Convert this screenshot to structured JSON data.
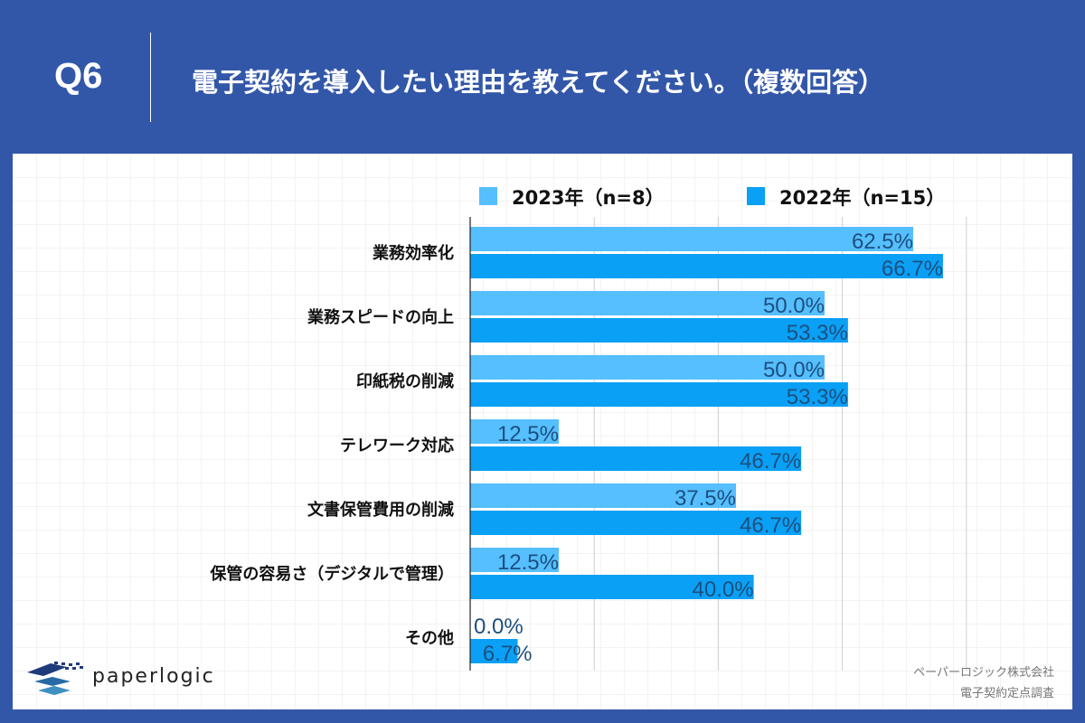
{
  "header": {
    "qnum": "Q6",
    "title": "電子契約を導入したい理由を教えてください。（複数回答）"
  },
  "footer": {
    "brand": "paperlogic",
    "company": "ペーパーロジック株式会社",
    "survey": "電子契約定点調査"
  },
  "colors": {
    "frame": "#3357a8",
    "series_2023": "#55bfff",
    "series_2022": "#0aa0f5",
    "value_label": "#1d4f7e"
  },
  "chart_data": {
    "type": "bar",
    "orientation": "horizontal",
    "unit": "%",
    "categories": [
      "業務効率化",
      "業務スピードの向上",
      "印紙税の削減",
      "テレワーク対応",
      "文書保管費用の削減",
      "保管の容易さ（デジタルで管理）",
      "その他"
    ],
    "series": [
      {
        "name": "2023年（n=8）",
        "values": [
          62.5,
          50.0,
          50.0,
          12.5,
          37.5,
          12.5,
          0.0
        ]
      },
      {
        "name": "2022年（n=15）",
        "values": [
          66.7,
          53.3,
          53.3,
          46.7,
          46.7,
          40.0,
          6.7
        ]
      }
    ],
    "xlim": [
      0,
      70
    ],
    "gridlines": [
      17.5,
      35,
      52.5,
      70
    ],
    "grid": true,
    "legend_position": "top"
  }
}
